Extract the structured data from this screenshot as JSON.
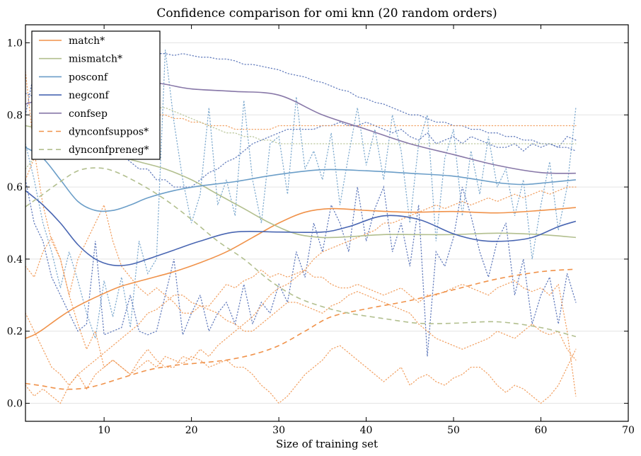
{
  "chart_data": {
    "type": "line",
    "title": "Confidence comparison for omi knn (20 random orders)",
    "xlabel": "Size of training set",
    "ylabel": "",
    "xlim": [
      1,
      70
    ],
    "ylim": [
      -0.05,
      1.05
    ],
    "xticks": [
      10,
      20,
      30,
      40,
      50,
      60,
      70
    ],
    "yticks": [
      0.0,
      0.2,
      0.4,
      0.6,
      0.8,
      1.0
    ],
    "xtick_labels": [
      "10",
      "20",
      "30",
      "40",
      "50",
      "60",
      "70"
    ],
    "ytick_labels": [
      "0.0",
      "0.2",
      "0.4",
      "0.6",
      "0.8",
      "1.0"
    ],
    "grid": true,
    "legend_position": "top-left",
    "series": [
      {
        "name": "match*",
        "color": "#f0924a",
        "style": "solid",
        "x": [
          1,
          2,
          3,
          5,
          7,
          10,
          12,
          15,
          18,
          21,
          24,
          27,
          30,
          33,
          36,
          40,
          45,
          50,
          55,
          60,
          64
        ],
        "y": [
          0.18,
          0.19,
          0.205,
          0.24,
          0.27,
          0.305,
          0.325,
          0.345,
          0.365,
          0.39,
          0.42,
          0.46,
          0.5,
          0.53,
          0.54,
          0.535,
          0.53,
          0.532,
          0.528,
          0.535,
          0.543
        ]
      },
      {
        "name": "mismatch*",
        "color": "#b2bf8e",
        "style": "solid",
        "x": [
          1,
          3,
          5,
          8,
          11,
          14,
          17,
          20,
          23,
          26,
          29,
          32,
          35,
          38,
          42,
          46,
          50,
          55,
          60,
          64
        ],
        "y": [
          0.77,
          0.76,
          0.75,
          0.72,
          0.69,
          0.67,
          0.65,
          0.62,
          0.58,
          0.54,
          0.5,
          0.47,
          0.46,
          0.462,
          0.468,
          0.468,
          0.468,
          0.472,
          0.468,
          0.46
        ]
      },
      {
        "name": "posconf",
        "color": "#6b9ec8",
        "style": "solid",
        "x": [
          1,
          3,
          5,
          7,
          9,
          11,
          13,
          15,
          18,
          21,
          25,
          30,
          35,
          40,
          45,
          50,
          55,
          58,
          61,
          64
        ],
        "y": [
          0.71,
          0.68,
          0.62,
          0.56,
          0.535,
          0.535,
          0.55,
          0.57,
          0.59,
          0.603,
          0.615,
          0.635,
          0.648,
          0.645,
          0.638,
          0.63,
          0.612,
          0.607,
          0.613,
          0.62
        ]
      },
      {
        "name": "negconf",
        "color": "#4966b2",
        "style": "solid",
        "x": [
          1,
          3,
          5,
          7,
          9,
          11,
          13,
          15,
          18,
          21,
          25,
          30,
          35,
          38,
          42,
          46,
          50,
          53,
          56,
          59,
          62,
          64
        ],
        "y": [
          0.59,
          0.55,
          0.5,
          0.44,
          0.4,
          0.383,
          0.385,
          0.4,
          0.425,
          0.45,
          0.475,
          0.475,
          0.475,
          0.49,
          0.52,
          0.51,
          0.47,
          0.452,
          0.45,
          0.46,
          0.49,
          0.505
        ]
      },
      {
        "name": "confsep",
        "color": "#8878a8",
        "style": "solid",
        "x": [
          1,
          3,
          5,
          8,
          11,
          14,
          17,
          20,
          25,
          30,
          35,
          40,
          45,
          50,
          55,
          60,
          64
        ],
        "y": [
          0.83,
          0.845,
          0.86,
          0.88,
          0.895,
          0.895,
          0.885,
          0.872,
          0.865,
          0.855,
          0.8,
          0.76,
          0.72,
          0.69,
          0.66,
          0.64,
          0.638
        ]
      },
      {
        "name": "dynconfsuppos*",
        "color": "#f0924a",
        "style": "dashed",
        "x": [
          1,
          3,
          5,
          7,
          9,
          12,
          15,
          18,
          21,
          24,
          27,
          30,
          33,
          36,
          40,
          45,
          50,
          55,
          60,
          64
        ],
        "y": [
          0.055,
          0.048,
          0.04,
          0.04,
          0.048,
          0.07,
          0.092,
          0.105,
          0.112,
          0.12,
          0.135,
          0.16,
          0.2,
          0.24,
          0.262,
          0.285,
          0.315,
          0.345,
          0.365,
          0.372
        ]
      },
      {
        "name": "dynconfpreneg*",
        "color": "#b2bf8e",
        "style": "dashed",
        "x": [
          1,
          3,
          5,
          7,
          9,
          11,
          14,
          17,
          20,
          23,
          26,
          29,
          32,
          35,
          38,
          42,
          46,
          50,
          55,
          60,
          64
        ],
        "y": [
          0.545,
          0.58,
          0.615,
          0.645,
          0.653,
          0.645,
          0.61,
          0.565,
          0.51,
          0.45,
          0.4,
          0.34,
          0.295,
          0.268,
          0.25,
          0.235,
          0.222,
          0.222,
          0.226,
          0.21,
          0.185
        ]
      }
    ],
    "dotted_traces": [
      {
        "color": "#6b9ec8",
        "y": [
          0.72,
          0.62,
          0.5,
          0.42,
          0.32,
          0.42,
          0.34,
          0.25,
          0.18,
          0.34,
          0.24,
          0.35,
          0.21,
          0.45,
          0.36,
          0.4,
          0.98,
          0.78,
          0.62,
          0.5,
          0.58,
          0.82,
          0.55,
          0.62,
          0.52,
          0.84,
          0.62,
          0.5,
          0.72,
          0.74,
          0.58,
          0.85,
          0.65,
          0.7,
          0.62,
          0.75,
          0.55,
          0.69,
          0.82,
          0.66,
          0.76,
          0.62,
          0.8,
          0.7,
          0.5,
          0.72,
          0.8,
          0.45,
          0.68,
          0.76,
          0.52,
          0.7,
          0.58,
          0.74,
          0.6,
          0.65,
          0.52,
          0.62,
          0.4,
          0.55,
          0.67,
          0.48,
          0.6,
          0.82
        ]
      },
      {
        "color": "#4966b2",
        "y": [
          0.62,
          0.5,
          0.45,
          0.35,
          0.3,
          0.25,
          0.2,
          0.22,
          0.45,
          0.19,
          0.2,
          0.21,
          0.3,
          0.2,
          0.19,
          0.2,
          0.3,
          0.4,
          0.19,
          0.25,
          0.3,
          0.2,
          0.25,
          0.28,
          0.22,
          0.33,
          0.22,
          0.28,
          0.25,
          0.33,
          0.28,
          0.42,
          0.35,
          0.5,
          0.42,
          0.55,
          0.5,
          0.42,
          0.6,
          0.45,
          0.54,
          0.6,
          0.42,
          0.5,
          0.38,
          0.55,
          0.13,
          0.42,
          0.38,
          0.46,
          0.6,
          0.52,
          0.42,
          0.35,
          0.45,
          0.5,
          0.3,
          0.4,
          0.22,
          0.3,
          0.35,
          0.22,
          0.36,
          0.28
        ]
      },
      {
        "color": "#4966b2",
        "y": [
          0.8,
          0.92,
          0.94,
          0.96,
          0.97,
          0.97,
          0.965,
          0.96,
          0.96,
          0.97,
          0.97,
          0.96,
          0.97,
          0.96,
          0.975,
          0.97,
          0.97,
          0.965,
          0.97,
          0.965,
          0.96,
          0.96,
          0.955,
          0.955,
          0.95,
          0.94,
          0.94,
          0.935,
          0.93,
          0.925,
          0.915,
          0.91,
          0.905,
          0.895,
          0.89,
          0.88,
          0.87,
          0.865,
          0.85,
          0.845,
          0.835,
          0.83,
          0.82,
          0.81,
          0.8,
          0.8,
          0.79,
          0.78,
          0.78,
          0.77,
          0.77,
          0.76,
          0.76,
          0.75,
          0.75,
          0.74,
          0.74,
          0.73,
          0.73,
          0.72,
          0.72,
          0.71,
          0.71,
          0.7
        ]
      },
      {
        "color": "#4966b2",
        "y": [
          0.86,
          0.85,
          0.85,
          0.83,
          0.82,
          0.8,
          0.8,
          0.78,
          0.75,
          0.72,
          0.7,
          0.69,
          0.67,
          0.65,
          0.65,
          0.62,
          0.62,
          0.6,
          0.6,
          0.6,
          0.62,
          0.64,
          0.65,
          0.67,
          0.68,
          0.7,
          0.72,
          0.73,
          0.74,
          0.75,
          0.76,
          0.76,
          0.76,
          0.76,
          0.77,
          0.77,
          0.78,
          0.77,
          0.77,
          0.78,
          0.77,
          0.76,
          0.75,
          0.76,
          0.74,
          0.73,
          0.75,
          0.72,
          0.73,
          0.74,
          0.72,
          0.74,
          0.73,
          0.72,
          0.71,
          0.71,
          0.72,
          0.7,
          0.72,
          0.71,
          0.72,
          0.71,
          0.74,
          0.73
        ]
      },
      {
        "color": "#f0924a",
        "y": [
          0.92,
          0.7,
          0.55,
          0.45,
          0.4,
          0.3,
          0.4,
          0.45,
          0.5,
          0.55,
          0.45,
          0.38,
          0.35,
          0.32,
          0.3,
          0.32,
          0.3,
          0.28,
          0.25,
          0.25,
          0.27,
          0.27,
          0.3,
          0.33,
          0.32,
          0.34,
          0.35,
          0.37,
          0.35,
          0.36,
          0.35,
          0.36,
          0.37,
          0.35,
          0.35,
          0.33,
          0.32,
          0.32,
          0.33,
          0.32,
          0.31,
          0.3,
          0.31,
          0.32,
          0.3,
          0.28,
          0.3,
          0.3,
          0.31,
          0.32,
          0.33,
          0.32,
          0.31,
          0.3,
          0.32,
          0.33,
          0.34,
          0.32,
          0.31,
          0.32,
          0.3,
          0.33,
          0.2,
          0.02
        ]
      },
      {
        "color": "#f0924a",
        "y": [
          0.38,
          0.35,
          0.42,
          0.46,
          0.4,
          0.3,
          0.22,
          0.15,
          0.2,
          0.1,
          0.12,
          0.1,
          0.08,
          0.12,
          0.15,
          0.12,
          0.1,
          0.1,
          0.13,
          0.12,
          0.15,
          0.13,
          0.16,
          0.18,
          0.2,
          0.22,
          0.24,
          0.27,
          0.3,
          0.32,
          0.33,
          0.35,
          0.37,
          0.4,
          0.42,
          0.43,
          0.44,
          0.45,
          0.46,
          0.47,
          0.48,
          0.5,
          0.5,
          0.51,
          0.52,
          0.53,
          0.54,
          0.55,
          0.54,
          0.55,
          0.56,
          0.55,
          0.56,
          0.57,
          0.56,
          0.57,
          0.58,
          0.57,
          0.58,
          0.59,
          0.58,
          0.59,
          0.6,
          0.6
        ]
      },
      {
        "color": "#f0924a",
        "y": [
          0.05,
          0.02,
          0.04,
          0.02,
          0.0,
          0.05,
          0.08,
          0.04,
          0.08,
          0.1,
          0.12,
          0.1,
          0.08,
          0.1,
          0.12,
          0.1,
          0.13,
          0.12,
          0.11,
          0.13,
          0.12,
          0.1,
          0.11,
          0.12,
          0.1,
          0.1,
          0.08,
          0.05,
          0.03,
          0.0,
          0.02,
          0.05,
          0.08,
          0.1,
          0.12,
          0.15,
          0.16,
          0.14,
          0.12,
          0.1,
          0.08,
          0.06,
          0.08,
          0.1,
          0.05,
          0.07,
          0.08,
          0.06,
          0.05,
          0.07,
          0.08,
          0.1,
          0.1,
          0.08,
          0.05,
          0.03,
          0.05,
          0.04,
          0.02,
          0.0,
          0.02,
          0.05,
          0.1,
          0.15
        ]
      },
      {
        "color": "#f0924a",
        "y": [
          0.25,
          0.2,
          0.15,
          0.1,
          0.08,
          0.05,
          0.08,
          0.1,
          0.12,
          0.14,
          0.16,
          0.18,
          0.2,
          0.22,
          0.25,
          0.26,
          0.28,
          0.3,
          0.3,
          0.28,
          0.27,
          0.26,
          0.25,
          0.23,
          0.22,
          0.2,
          0.2,
          0.22,
          0.24,
          0.26,
          0.28,
          0.28,
          0.27,
          0.26,
          0.25,
          0.27,
          0.28,
          0.3,
          0.31,
          0.3,
          0.29,
          0.28,
          0.27,
          0.26,
          0.25,
          0.22,
          0.2,
          0.18,
          0.17,
          0.16,
          0.15,
          0.16,
          0.17,
          0.18,
          0.2,
          0.19,
          0.18,
          0.2,
          0.22,
          0.2,
          0.19,
          0.2,
          0.15,
          0.12
        ]
      },
      {
        "color": "#f0924a",
        "y": [
          0.62,
          0.68,
          0.72,
          0.74,
          0.76,
          0.77,
          0.78,
          0.79,
          0.8,
          0.8,
          0.8,
          0.81,
          0.81,
          0.8,
          0.8,
          0.8,
          0.8,
          0.79,
          0.79,
          0.78,
          0.78,
          0.77,
          0.77,
          0.77,
          0.76,
          0.76,
          0.76,
          0.76,
          0.76,
          0.77,
          0.77,
          0.77,
          0.77,
          0.77,
          0.77,
          0.77,
          0.77,
          0.77,
          0.77,
          0.77,
          0.77,
          0.77,
          0.77,
          0.77,
          0.77,
          0.77,
          0.77,
          0.77,
          0.77,
          0.77,
          0.77,
          0.77,
          0.77,
          0.77,
          0.77,
          0.77,
          0.77,
          0.77,
          0.77,
          0.77,
          0.77,
          0.77,
          0.77,
          0.77
        ]
      },
      {
        "color": "#b2bf8e",
        "y": [
          0.65,
          0.68,
          0.72,
          0.74,
          0.76,
          0.78,
          0.79,
          0.8,
          0.81,
          0.82,
          0.82,
          0.83,
          0.83,
          0.83,
          0.83,
          0.82,
          0.82,
          0.81,
          0.8,
          0.79,
          0.78,
          0.77,
          0.76,
          0.75,
          0.75,
          0.74,
          0.74,
          0.73,
          0.73,
          0.72,
          0.72,
          0.72,
          0.72,
          0.72,
          0.72,
          0.72,
          0.72,
          0.72,
          0.72,
          0.72,
          0.72,
          0.72,
          0.72,
          0.72,
          0.72,
          0.72,
          0.72,
          0.72,
          0.72,
          0.72,
          0.72,
          0.72,
          0.72,
          0.72,
          0.72,
          0.72,
          0.72,
          0.72,
          0.72,
          0.72,
          0.72,
          0.72,
          0.72,
          0.72
        ]
      }
    ]
  }
}
